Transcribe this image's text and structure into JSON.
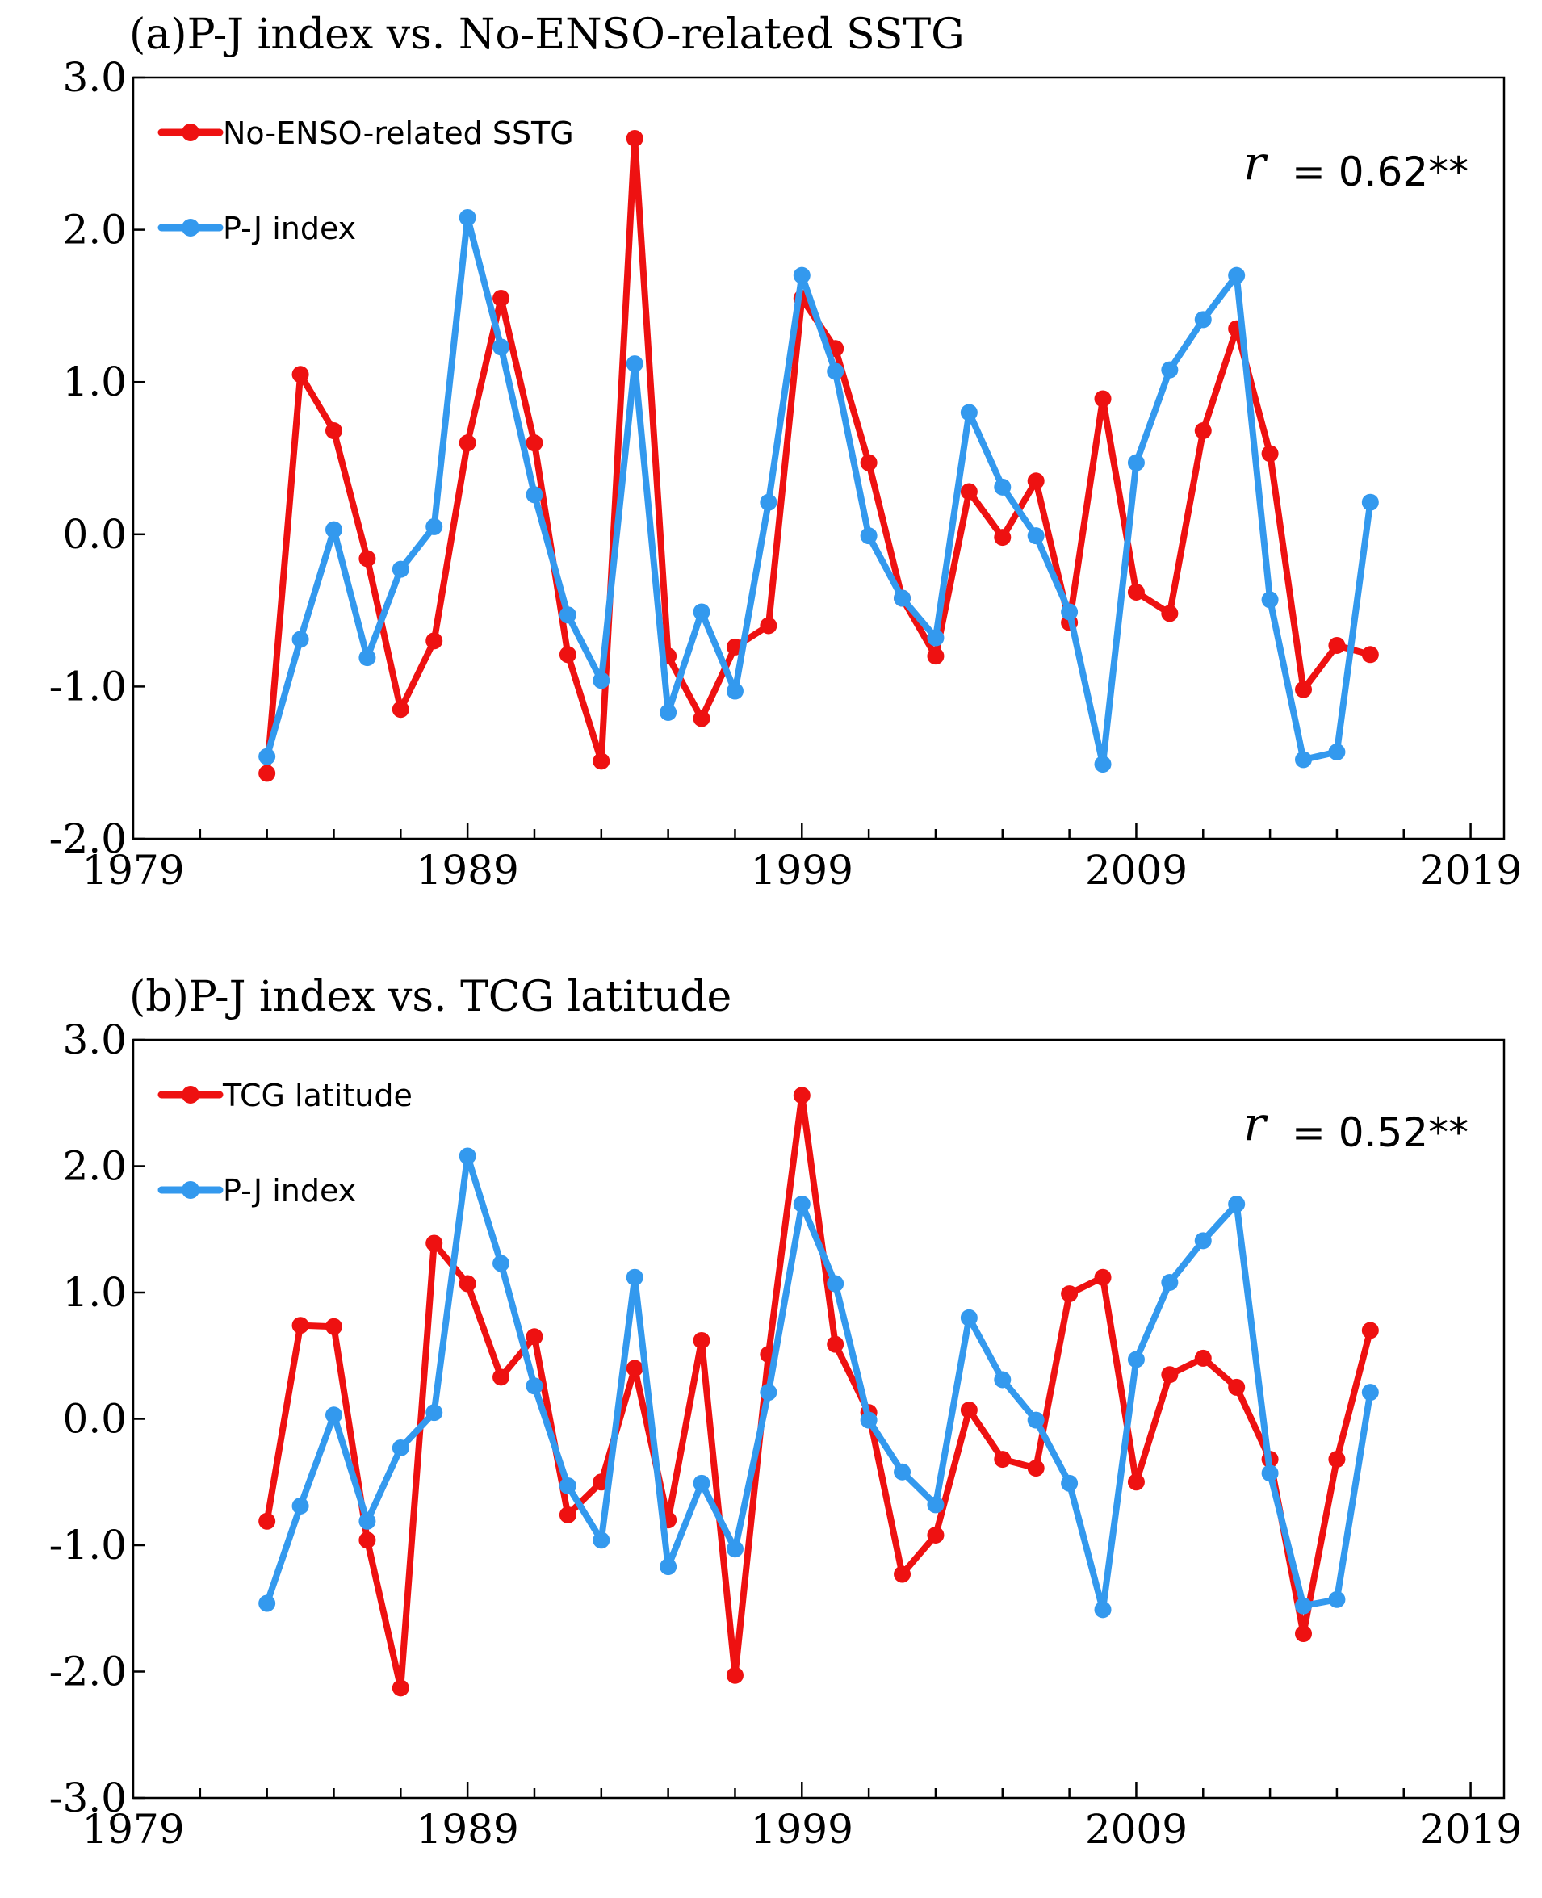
{
  "chart_data": [
    {
      "type": "line",
      "title": "(a)P-J index vs. No-ENSO-related SSTG",
      "xlabel": "",
      "ylabel": "",
      "xlim": [
        1979,
        2020
      ],
      "ylim": [
        -2.0,
        3.0
      ],
      "xticks": [
        "1979",
        "1989",
        "1999",
        "2009",
        "2019"
      ],
      "yticks": [
        "3.0",
        "2.0",
        "1.0",
        "0.0",
        "-1.0",
        "-2.0"
      ],
      "correlation_label": "r",
      "correlation_value": "= 0.62**",
      "legend_position": "top-left",
      "grid": false,
      "x": [
        1983,
        1984,
        1985,
        1986,
        1987,
        1988,
        1989,
        1990,
        1991,
        1992,
        1993,
        1994,
        1995,
        1996,
        1997,
        1998,
        1999,
        2000,
        2001,
        2002,
        2003,
        2004,
        2005,
        2006,
        2007,
        2008,
        2009,
        2010,
        2011,
        2012,
        2013,
        2014,
        2015,
        2016
      ],
      "series": [
        {
          "name": "No-ENSO-related SSTG",
          "color": "#ee1111",
          "values": [
            -1.57,
            1.05,
            0.68,
            -0.16,
            -1.15,
            -0.7,
            0.6,
            1.55,
            0.6,
            -0.79,
            -1.49,
            2.6,
            -0.8,
            -1.21,
            -0.74,
            -0.6,
            1.55,
            1.22,
            0.47,
            -0.42,
            -0.8,
            0.28,
            -0.02,
            0.35,
            -0.58,
            0.89,
            -0.38,
            -0.52,
            0.68,
            1.35,
            0.53,
            -1.02,
            -0.73,
            -0.79
          ]
        },
        {
          "name": "P-J index",
          "color": "#3399ee",
          "values": [
            -1.46,
            -0.69,
            0.03,
            -0.81,
            -0.23,
            0.05,
            2.08,
            1.23,
            0.26,
            -0.53,
            -0.96,
            1.12,
            -1.17,
            -0.51,
            -1.03,
            0.21,
            1.7,
            1.07,
            -0.01,
            -0.42,
            -0.68,
            0.8,
            0.31,
            -0.01,
            -0.51,
            -1.51,
            0.47,
            1.08,
            1.41,
            1.7,
            -0.43,
            -1.48,
            -1.43,
            0.21
          ]
        }
      ]
    },
    {
      "type": "line",
      "title": "(b)P-J index vs. TCG latitude",
      "xlabel": "",
      "ylabel": "",
      "xlim": [
        1979,
        2020
      ],
      "ylim": [
        -3.0,
        3.0
      ],
      "xticks": [
        "1979",
        "1989",
        "1999",
        "2009",
        "2019"
      ],
      "yticks": [
        "3.0",
        "2.0",
        "1.0",
        "0.0",
        "-1.0",
        "-2.0",
        "-3.0"
      ],
      "correlation_label": "r",
      "correlation_value": "= 0.52**",
      "legend_position": "top-left",
      "grid": false,
      "x": [
        1983,
        1984,
        1985,
        1986,
        1987,
        1988,
        1989,
        1990,
        1991,
        1992,
        1993,
        1994,
        1995,
        1996,
        1997,
        1998,
        1999,
        2000,
        2001,
        2002,
        2003,
        2004,
        2005,
        2006,
        2007,
        2008,
        2009,
        2010,
        2011,
        2012,
        2013,
        2014,
        2015,
        2016
      ],
      "series": [
        {
          "name": "TCG latitude",
          "color": "#ee1111",
          "values": [
            -0.81,
            0.74,
            0.73,
            -0.96,
            -2.13,
            1.39,
            1.07,
            0.33,
            0.65,
            -0.76,
            -0.5,
            0.4,
            -0.8,
            0.62,
            -2.03,
            0.51,
            2.56,
            0.59,
            0.05,
            -1.23,
            -0.92,
            0.07,
            -0.32,
            -0.39,
            0.99,
            1.12,
            -0.5,
            0.35,
            0.48,
            0.25,
            -0.32,
            -1.7,
            -0.32,
            0.7
          ]
        },
        {
          "name": "P-J index",
          "color": "#3399ee",
          "values": [
            -1.46,
            -0.69,
            0.03,
            -0.81,
            -0.23,
            0.05,
            2.08,
            1.23,
            0.26,
            -0.53,
            -0.96,
            1.12,
            -1.17,
            -0.51,
            -1.03,
            0.21,
            1.7,
            1.07,
            -0.01,
            -0.42,
            -0.68,
            0.8,
            0.31,
            -0.01,
            -0.51,
            -1.51,
            0.47,
            1.08,
            1.41,
            1.7,
            -0.43,
            -1.48,
            -1.43,
            0.21
          ]
        }
      ]
    }
  ]
}
